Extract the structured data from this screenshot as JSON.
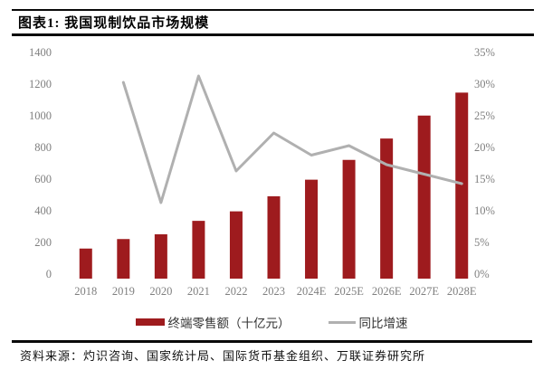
{
  "header": {
    "title": "图表1: 我国现制饮品市场规模"
  },
  "legend": {
    "bar_label": "终端零售额（十亿元）",
    "line_label": "同比增速"
  },
  "footer": {
    "source": "资料来源：灼识咨询、国家统计局、国际货币基金组织、万联证券研究所"
  },
  "colors": {
    "bar": "#9E1B1E",
    "line": "#B0B0B0",
    "tick_text": "#7F7F7F",
    "rule": "#0A0A0A"
  },
  "chart_data": {
    "type": "bar",
    "subtype": "combo-bar-line",
    "title": "我国现制饮品市场规模",
    "categories": [
      "2018",
      "2019",
      "2020",
      "2021",
      "2022",
      "2023",
      "2024E",
      "2025E",
      "2026E",
      "2027E",
      "2028E"
    ],
    "series": [
      {
        "name": "终端零售额（十亿元）",
        "type": "bar",
        "axis": "left",
        "color": "#9E1B1E",
        "values": [
          190,
          250,
          280,
          365,
          425,
          520,
          625,
          750,
          885,
          1030,
          1175
        ]
      },
      {
        "name": "同比增速",
        "type": "line",
        "axis": "right",
        "unit": "%",
        "color": "#B0B0B0",
        "values": [
          null,
          31,
          12,
          32,
          17,
          23,
          19.5,
          21,
          18,
          16.5,
          15
        ]
      }
    ],
    "left_axis": {
      "min": 0,
      "max": 1400,
      "step": 200,
      "ticks": [
        "0",
        "200",
        "400",
        "600",
        "800",
        "1000",
        "1200",
        "1400"
      ]
    },
    "right_axis": {
      "min": 0,
      "max": 35,
      "step": 5,
      "ticks": [
        "0%",
        "5%",
        "10%",
        "15%",
        "20%",
        "25%",
        "30%",
        "35%"
      ]
    },
    "grid": false,
    "axis_lines": false,
    "legend_position": "bottom"
  }
}
